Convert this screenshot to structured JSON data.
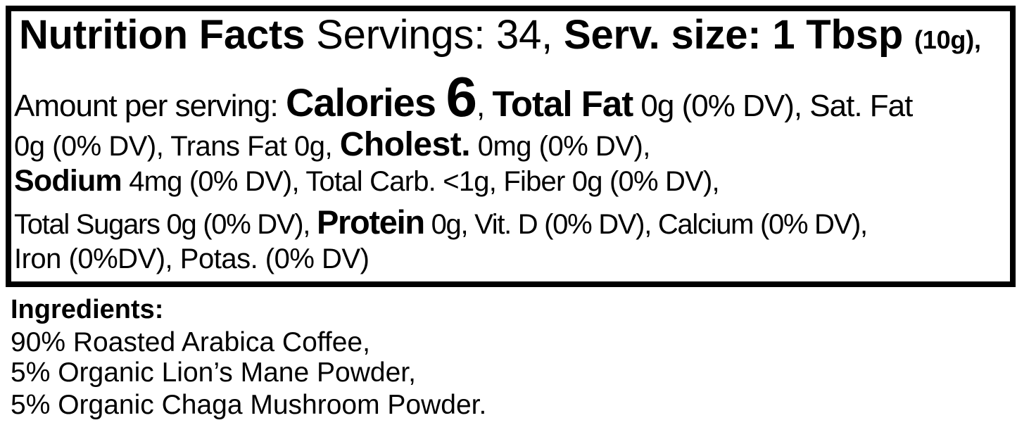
{
  "colors": {
    "text": "#000000",
    "border": "#000000",
    "background": "#ffffff"
  },
  "nutrition_label": {
    "line1": {
      "title": "Nutrition Facts",
      "servings": " Servings: 34, ",
      "serving_size": "Serv. size: 1 Tbsp ",
      "serving_size_weight": "(10g),"
    },
    "line2": {
      "amount_per_serving": "Amount per serving: ",
      "calories_label": "Calories ",
      "calories_value": "6",
      "separator": ", ",
      "total_fat_label": "Total Fat",
      "total_fat_rest": " 0g (0% DV), Sat. Fat"
    },
    "line3": {
      "satfat_transfat": "0g (0% DV), Trans Fat 0g, ",
      "cholesterol_label": "Cholest.",
      "cholesterol_rest": " 0mg (0% DV),"
    },
    "line4": {
      "sodium_label": "Sodium",
      "sodium_carb_fiber": " 4mg (0% DV), Total Carb. <1g, Fiber 0g (0% DV),"
    },
    "line5": {
      "total_sugars": "Total Sugars 0g (0% DV), ",
      "protein_label": "Protein",
      "protein_vitamins": " 0g, Vit. D (0% DV), Calcium (0% DV),"
    },
    "line6": {
      "iron_potassium": "Iron (0%DV), Potas. (0% DV)"
    }
  },
  "ingredients": {
    "title": "Ingredients:",
    "items": [
      "90% Roasted Arabica Coffee,",
      "5% Organic Lion’s Mane Powder,",
      "5% Organic Chaga Mushroom Powder."
    ]
  }
}
